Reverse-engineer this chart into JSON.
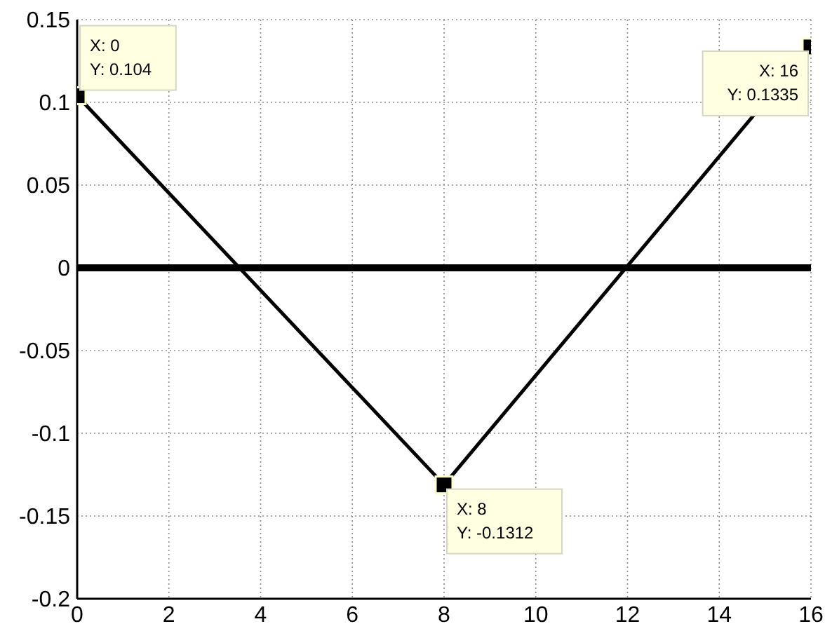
{
  "chart_data": {
    "type": "line",
    "x": [
      0,
      8,
      16
    ],
    "series": [
      {
        "color": "#000000",
        "values": [
          0.104,
          -0.1312,
          0.1335
        ]
      }
    ],
    "xlim": [
      0,
      16
    ],
    "xticks": [
      0,
      2,
      4,
      6,
      8,
      10,
      12,
      14,
      16
    ],
    "ylim": [
      -0.2,
      0.15
    ],
    "yticks": [
      -0.2,
      -0.15,
      -0.1,
      -0.05,
      0,
      0.05,
      0.1,
      0.15
    ],
    "grid": true,
    "marker": "square",
    "line_style": "solid",
    "ref_lines": [
      {
        "axis": "y",
        "value": 0,
        "color": "#000000"
      }
    ],
    "annotations": [
      {
        "text": "X: 0\nY: 0.104",
        "x": 0,
        "y": 0.104
      },
      {
        "text": "X: 8\nY: -0.1312",
        "x": 8,
        "y": -0.1312
      },
      {
        "text": "X: 16\nY: 0.1335",
        "x": 16,
        "y": 0.1335
      }
    ]
  }
}
